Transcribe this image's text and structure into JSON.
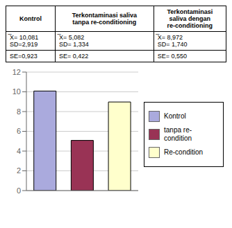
{
  "chart_data": {
    "type": "bar",
    "categories": [
      null,
      null,
      null
    ],
    "series": [
      {
        "name": "Kontrol",
        "color": "#aaaadd",
        "values": [
          10.081,
          null,
          null
        ]
      },
      {
        "name": "tanpa re-\ncondition",
        "color": "#993355",
        "values": [
          null,
          5.082,
          null
        ]
      },
      {
        "name": "Re-condition",
        "color": "#ffffcc",
        "values": [
          null,
          null,
          8.972
        ]
      }
    ],
    "ylim": [
      0,
      12
    ],
    "yticks": [
      0,
      2,
      4,
      6,
      8,
      10,
      12
    ],
    "grid": true,
    "legend": "right",
    "tick_labels": "y",
    "table": {
      "headers": [
        "Kontrol",
        "Terkontaminasi saliva\ntanpa re-conditioning",
        "Terkontaminasi\nsaliva  dengan\nre-conditioning"
      ],
      "rows": [
        [
          "̅X= 10,081\nSD=2,919",
          "̅X= 5,082\nSD= 1,334",
          "̅X= 8,972\nSD= 1,740"
        ],
        [
          "SE=0,923",
          "SE= 0,422",
          "SE= 0,550"
        ]
      ]
    }
  }
}
